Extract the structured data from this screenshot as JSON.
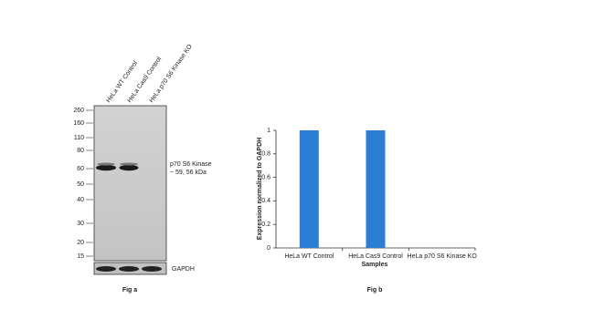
{
  "figure_a": {
    "lanes": [
      "HeLa WT Control",
      "HeLa Cas9 Control",
      "HeLa p70 S6 Kinase KO"
    ],
    "markers": [
      260,
      160,
      110,
      80,
      60,
      50,
      40,
      30,
      20,
      15
    ],
    "band_label": [
      "p70 S6 Kinase",
      "~ 59, 56 kDa"
    ],
    "loading_control": "GAPDH",
    "caption": "Fig a"
  },
  "chart_data": {
    "type": "bar",
    "categories": [
      "HeLa WT Control",
      "HeLa Cas9 Control",
      "HeLa p70 S6 Kinase KO"
    ],
    "values": [
      1,
      1,
      0
    ],
    "color": "#2a7fd4",
    "ylim": [
      0,
      1
    ],
    "yticks": [
      0,
      0.2,
      0.4,
      0.6,
      0.8,
      1
    ],
    "xlabel": "Samples",
    "ylabel": "Expression normalized to GAPDH",
    "caption": "Fig b"
  }
}
